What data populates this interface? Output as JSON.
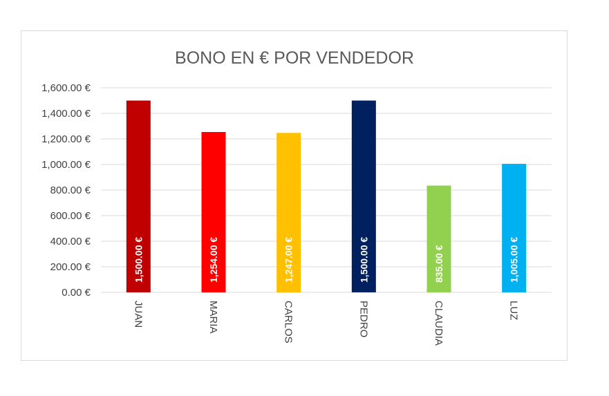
{
  "chart_data": {
    "type": "bar",
    "title": "BONO EN € POR VENDEDOR",
    "xlabel": "",
    "ylabel": "",
    "categories": [
      "JUAN",
      "MARIA",
      "CARLOS",
      "PEDRO",
      "CLAUDIA",
      "LUZ"
    ],
    "values": [
      1500,
      1254,
      1247,
      1500,
      835,
      1005
    ],
    "data_labels": [
      "1,500.00 €",
      "1,254.00 €",
      "1,247.00 €",
      "1,500.00 €",
      "835.00 €",
      "1,005.00 €"
    ],
    "colors": [
      "#c00000",
      "#ff0000",
      "#ffc000",
      "#002060",
      "#92d050",
      "#00b0f0"
    ],
    "ylim": [
      0,
      1600
    ],
    "yticks": [
      0,
      200,
      400,
      600,
      800,
      1000,
      1200,
      1400,
      1600
    ],
    "ytick_labels": [
      "0.00 €",
      "200.00 €",
      "400.00 €",
      "600.00 €",
      "800.00 €",
      "1,000.00 €",
      "1,200.00 €",
      "1,400.00 €",
      "1,600.00 €"
    ],
    "grid": true,
    "legend": "none"
  }
}
